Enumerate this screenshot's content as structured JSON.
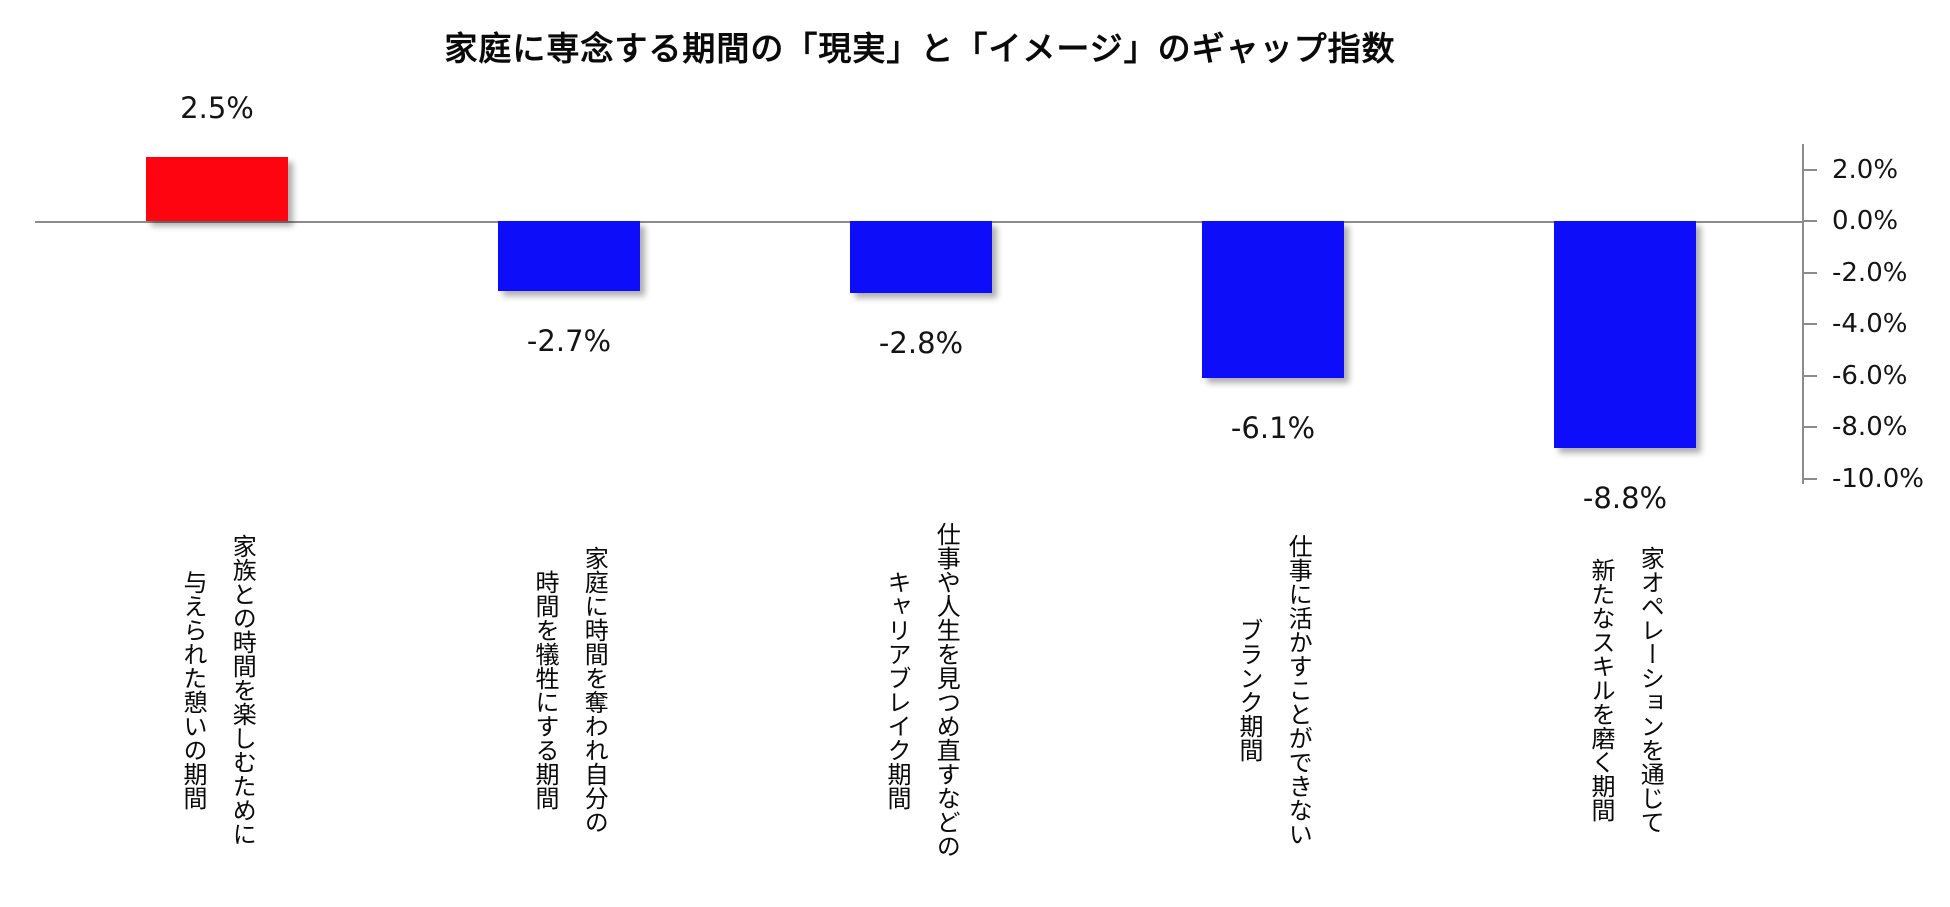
{
  "chart_data": {
    "type": "bar",
    "title": "家庭に専念する期間の「現実」と「イメージ」のギャップ指数",
    "categories": [
      "家族との時間を楽しむために与えられた憩いの期間",
      "家庭に時間を奪われ自分の時間を犠牲にする期間",
      "仕事や人生を見つめ直すなどのキャリアブレイク期間",
      "仕事に活かすことができないブランク期間",
      "家オペレーションを通じて新たなスキルを磨く期間"
    ],
    "category_lines": [
      [
        "家族との時間を楽しむために",
        "与えられた憩いの期間"
      ],
      [
        "家庭に時間を奪われ自分の",
        "時間を犠牲にする期間"
      ],
      [
        "仕事や人生を見つめ直すなどの",
        "キャリアブレイク期間"
      ],
      [
        "仕事に活かすことができない",
        "ブランク期間"
      ],
      [
        "家オペレーションを通じて",
        "新たなスキルを磨く期間"
      ]
    ],
    "values": [
      2.5,
      -2.7,
      -2.8,
      -6.1,
      -8.8
    ],
    "value_labels": [
      "2.5%",
      "-2.7%",
      "-2.8%",
      "-6.1%",
      "-8.8%"
    ],
    "bar_colors": [
      "#fe0410",
      "#0d0dfa",
      "#0d0dfa",
      "#0d0dfa",
      "#0d0dfa"
    ],
    "positive_color": "#fe0410",
    "negative_color": "#0d0dfa",
    "xlabel": "",
    "ylabel": "",
    "ylim": [
      -10.2,
      3.0
    ],
    "grid": false,
    "legend_position": "none",
    "y_axis": {
      "side": "right",
      "ticks": [
        {
          "label": "2.0%",
          "value": 2
        },
        {
          "label": "0.0%",
          "value": 0
        },
        {
          "label": "-2.0%",
          "value": -2
        },
        {
          "label": "-4.0%",
          "value": -4
        },
        {
          "label": "-6.0%",
          "value": -6
        },
        {
          "label": "-8.0%",
          "value": -8
        },
        {
          "label": "-10.0%",
          "value": -10
        }
      ]
    }
  }
}
